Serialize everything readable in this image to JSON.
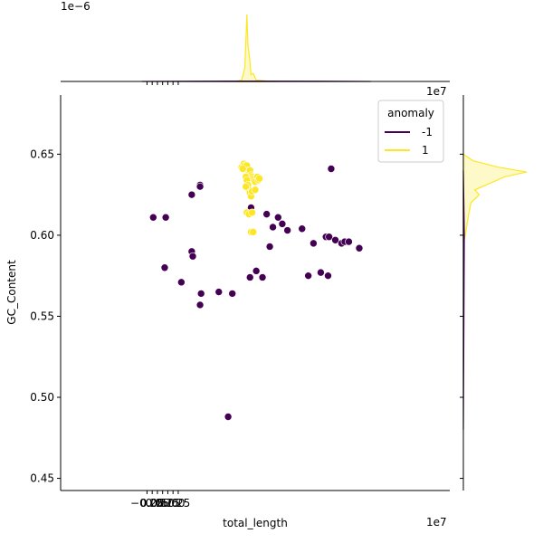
{
  "chart_data": {
    "type": "scatter",
    "title": "",
    "xlabel": "total_length",
    "ylabel": "GC_Content",
    "x_offset_text": "1e7",
    "y_offset_text": "1e7",
    "top_marginal_offset_text": "1e−6",
    "xlim": [
      -4.4,
      14.3
    ],
    "ylim": [
      0.4425,
      0.6865
    ],
    "x_ticks": [
      -0.25,
      0.0,
      0.25,
      0.5,
      0.75,
      1.0,
      1.25
    ],
    "x_tick_labels": [
      "−0.25",
      "0.00",
      "0.25",
      "0.50",
      "0.75",
      "1.00",
      "1.25"
    ],
    "y_ticks": [
      0.45,
      0.5,
      0.55,
      0.6,
      0.65
    ],
    "y_tick_labels": [
      "0.45",
      "0.50",
      "0.55",
      "0.60",
      "0.65"
    ],
    "grid": false,
    "legend": {
      "title": "anomaly",
      "position": "top-right",
      "entries": [
        {
          "label": "-1",
          "color": "#440154"
        },
        {
          "label": "1",
          "color": "#fde725"
        }
      ]
    },
    "series": [
      {
        "label": "-1",
        "color": "#440154",
        "points": [
          [
            0.05,
            0.611
          ],
          [
            0.65,
            0.611
          ],
          [
            0.6,
            0.58
          ],
          [
            1.4,
            0.571
          ],
          [
            1.9,
            0.625
          ],
          [
            2.3,
            0.631
          ],
          [
            2.3,
            0.63
          ],
          [
            1.9,
            0.59
          ],
          [
            1.95,
            0.587
          ],
          [
            2.3,
            0.557
          ],
          [
            2.35,
            0.564
          ],
          [
            3.2,
            0.565
          ],
          [
            3.85,
            0.564
          ],
          [
            3.65,
            0.488
          ],
          [
            4.7,
            0.574
          ],
          [
            4.75,
            0.617
          ],
          [
            5.0,
            0.578
          ],
          [
            5.3,
            0.574
          ],
          [
            5.5,
            0.613
          ],
          [
            5.65,
            0.593
          ],
          [
            5.8,
            0.605
          ],
          [
            6.05,
            0.611
          ],
          [
            6.25,
            0.607
          ],
          [
            6.5,
            0.603
          ],
          [
            7.2,
            0.604
          ],
          [
            7.5,
            0.575
          ],
          [
            7.75,
            0.595
          ],
          [
            8.1,
            0.577
          ],
          [
            8.35,
            0.599
          ],
          [
            8.5,
            0.599
          ],
          [
            8.45,
            0.575
          ],
          [
            8.6,
            0.641
          ],
          [
            8.8,
            0.597
          ],
          [
            9.1,
            0.595
          ],
          [
            9.25,
            0.596
          ],
          [
            9.45,
            0.596
          ],
          [
            9.95,
            0.592
          ]
        ]
      },
      {
        "label": "1",
        "color": "#fde725",
        "points": [
          [
            4.3,
            0.642
          ],
          [
            4.4,
            0.644
          ],
          [
            4.45,
            0.643
          ],
          [
            4.5,
            0.641
          ],
          [
            4.55,
            0.643
          ],
          [
            4.6,
            0.64
          ],
          [
            4.35,
            0.641
          ],
          [
            4.65,
            0.638
          ],
          [
            4.7,
            0.64
          ],
          [
            4.75,
            0.637
          ],
          [
            4.8,
            0.636
          ],
          [
            4.85,
            0.635
          ],
          [
            4.9,
            0.634
          ],
          [
            4.95,
            0.633
          ],
          [
            5.05,
            0.636
          ],
          [
            5.1,
            0.634
          ],
          [
            5.15,
            0.635
          ],
          [
            4.5,
            0.636
          ],
          [
            4.55,
            0.634
          ],
          [
            4.6,
            0.631
          ],
          [
            4.65,
            0.628
          ],
          [
            4.7,
            0.626
          ],
          [
            4.75,
            0.624
          ],
          [
            4.8,
            0.627
          ],
          [
            4.95,
            0.628
          ],
          [
            4.5,
            0.63
          ],
          [
            4.55,
            0.614
          ],
          [
            4.65,
            0.613
          ],
          [
            4.8,
            0.614
          ],
          [
            4.75,
            0.602
          ],
          [
            4.85,
            0.602
          ]
        ]
      }
    ],
    "marginals": {
      "top": {
        "series": [
          {
            "label": "1",
            "color": "#fde725",
            "x": [
              4.0,
              4.3,
              4.45,
              4.55,
              4.6,
              4.68,
              4.75,
              4.85,
              5.0,
              5.2,
              5.5,
              6.0
            ],
            "density": [
              0.0,
              0.02,
              0.2,
              1.0,
              0.55,
              0.35,
              0.1,
              0.12,
              0.02,
              0.015,
              0.005,
              0.0
            ]
          },
          {
            "label": "-1",
            "color": "#440154",
            "x": [
              -0.5,
              2.0,
              5.0,
              8.0,
              10.5
            ],
            "density": [
              0.0,
              0.004,
              0.006,
              0.004,
              0.0
            ]
          }
        ]
      },
      "right": {
        "series": [
          {
            "label": "1",
            "color": "#fde725",
            "y": [
              0.595,
              0.6,
              0.612,
              0.62,
              0.625,
              0.628,
              0.632,
              0.636,
              0.639,
              0.642,
              0.646,
              0.65
            ],
            "density": [
              0.0,
              0.03,
              0.08,
              0.12,
              0.25,
              0.18,
              0.42,
              0.65,
              1.0,
              0.55,
              0.15,
              0.0
            ]
          },
          {
            "label": "-1",
            "color": "#440154",
            "y": [
              0.48,
              0.56,
              0.6,
              0.64
            ],
            "density": [
              0.0,
              0.01,
              0.015,
              0.0
            ]
          }
        ]
      }
    }
  }
}
